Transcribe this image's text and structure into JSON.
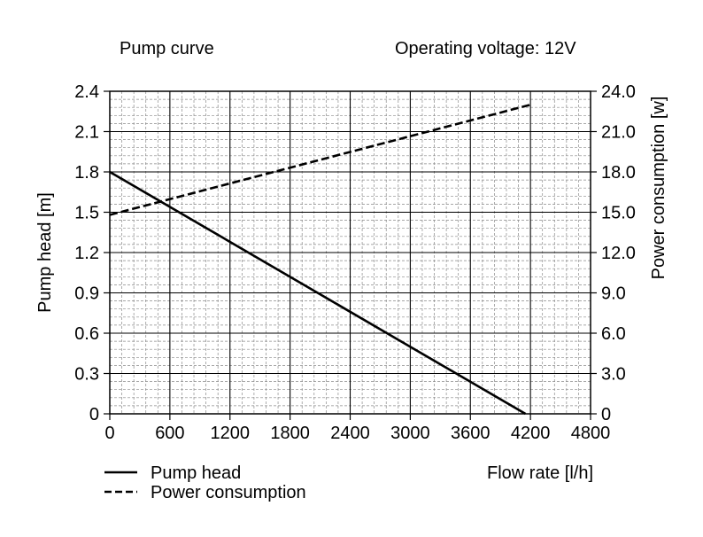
{
  "chart_data": {
    "type": "line",
    "title": "Pump curve",
    "subtitle": "Operating voltage: 12V",
    "xlabel": "Flow rate [l/h]",
    "ylabel": "Pump head [m]",
    "y2label": "Power consumption [w]",
    "xlim": [
      0,
      4800
    ],
    "ylim": [
      0,
      2.4
    ],
    "y2lim": [
      0,
      24
    ],
    "x_ticks": [
      "0",
      "600",
      "1200",
      "1800",
      "2400",
      "3000",
      "3600",
      "4200",
      "4800"
    ],
    "y_ticks": [
      "0",
      "0.3",
      "0.6",
      "0.9",
      "1.2",
      "1.5",
      "1.8",
      "2.1",
      "2.4"
    ],
    "y2_ticks": [
      "0",
      "3.0",
      "6.0",
      "9.0",
      "12.0",
      "15.0",
      "18.0",
      "21.0",
      "24.0"
    ],
    "grid": true,
    "legend_position": "bottom-left",
    "series": [
      {
        "name": "Pump head",
        "axis": "left",
        "style": "solid",
        "x": [
          0,
          4150
        ],
        "y": [
          1.8,
          0
        ]
      },
      {
        "name": "Power consumption",
        "axis": "right",
        "style": "dashed",
        "x": [
          0,
          4200
        ],
        "y": [
          14.8,
          23.0
        ]
      }
    ]
  }
}
